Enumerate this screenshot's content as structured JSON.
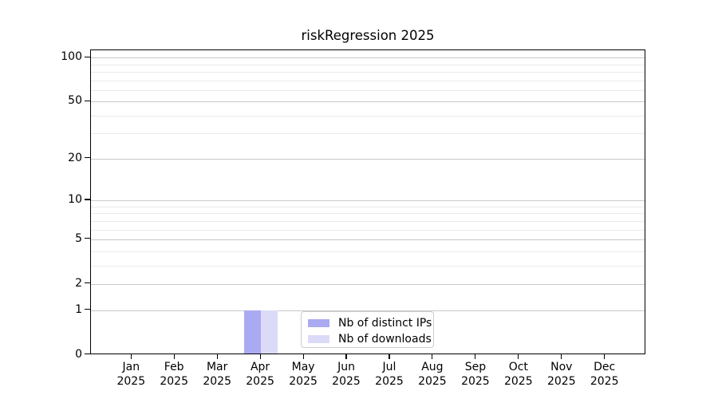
{
  "chart_data": {
    "type": "bar",
    "title": "riskRegression 2025",
    "categories": [
      "Jan",
      "Feb",
      "Mar",
      "Apr",
      "May",
      "Jun",
      "Jul",
      "Aug",
      "Sep",
      "Oct",
      "Nov",
      "Dec"
    ],
    "category_year": "2025",
    "series": [
      {
        "name": "Nb of distinct IPs",
        "color": "#aaaaf2",
        "values": [
          0,
          0,
          0,
          1,
          0,
          0,
          0,
          0,
          0,
          0,
          0,
          0
        ]
      },
      {
        "name": "Nb of downloads",
        "color": "#dbdbf8",
        "values": [
          0,
          0,
          0,
          1,
          0,
          0,
          0,
          0,
          0,
          0,
          0,
          0
        ]
      }
    ],
    "xlabel": "",
    "ylabel": "",
    "yaxis": {
      "scale": "log1p",
      "ylim": [
        0,
        112
      ],
      "major_ticks": [
        100,
        50,
        20,
        10,
        5,
        2,
        1,
        0
      ],
      "minor_gridlines": [
        3,
        4,
        6,
        7,
        8,
        9,
        30,
        40,
        60,
        70,
        80,
        90
      ]
    },
    "grid": true,
    "legend": {
      "position": "lower center",
      "entries": [
        "Nb of distinct IPs",
        "Nb of downloads"
      ]
    },
    "colors": {
      "distinct_ips": "#aaaaf2",
      "downloads": "#dbdbf8",
      "major_grid": "#c9c9c9",
      "minor_grid": "#eaeaea",
      "axis": "#000000",
      "legend_border": "#cccccc",
      "background": "#ffffff"
    }
  }
}
